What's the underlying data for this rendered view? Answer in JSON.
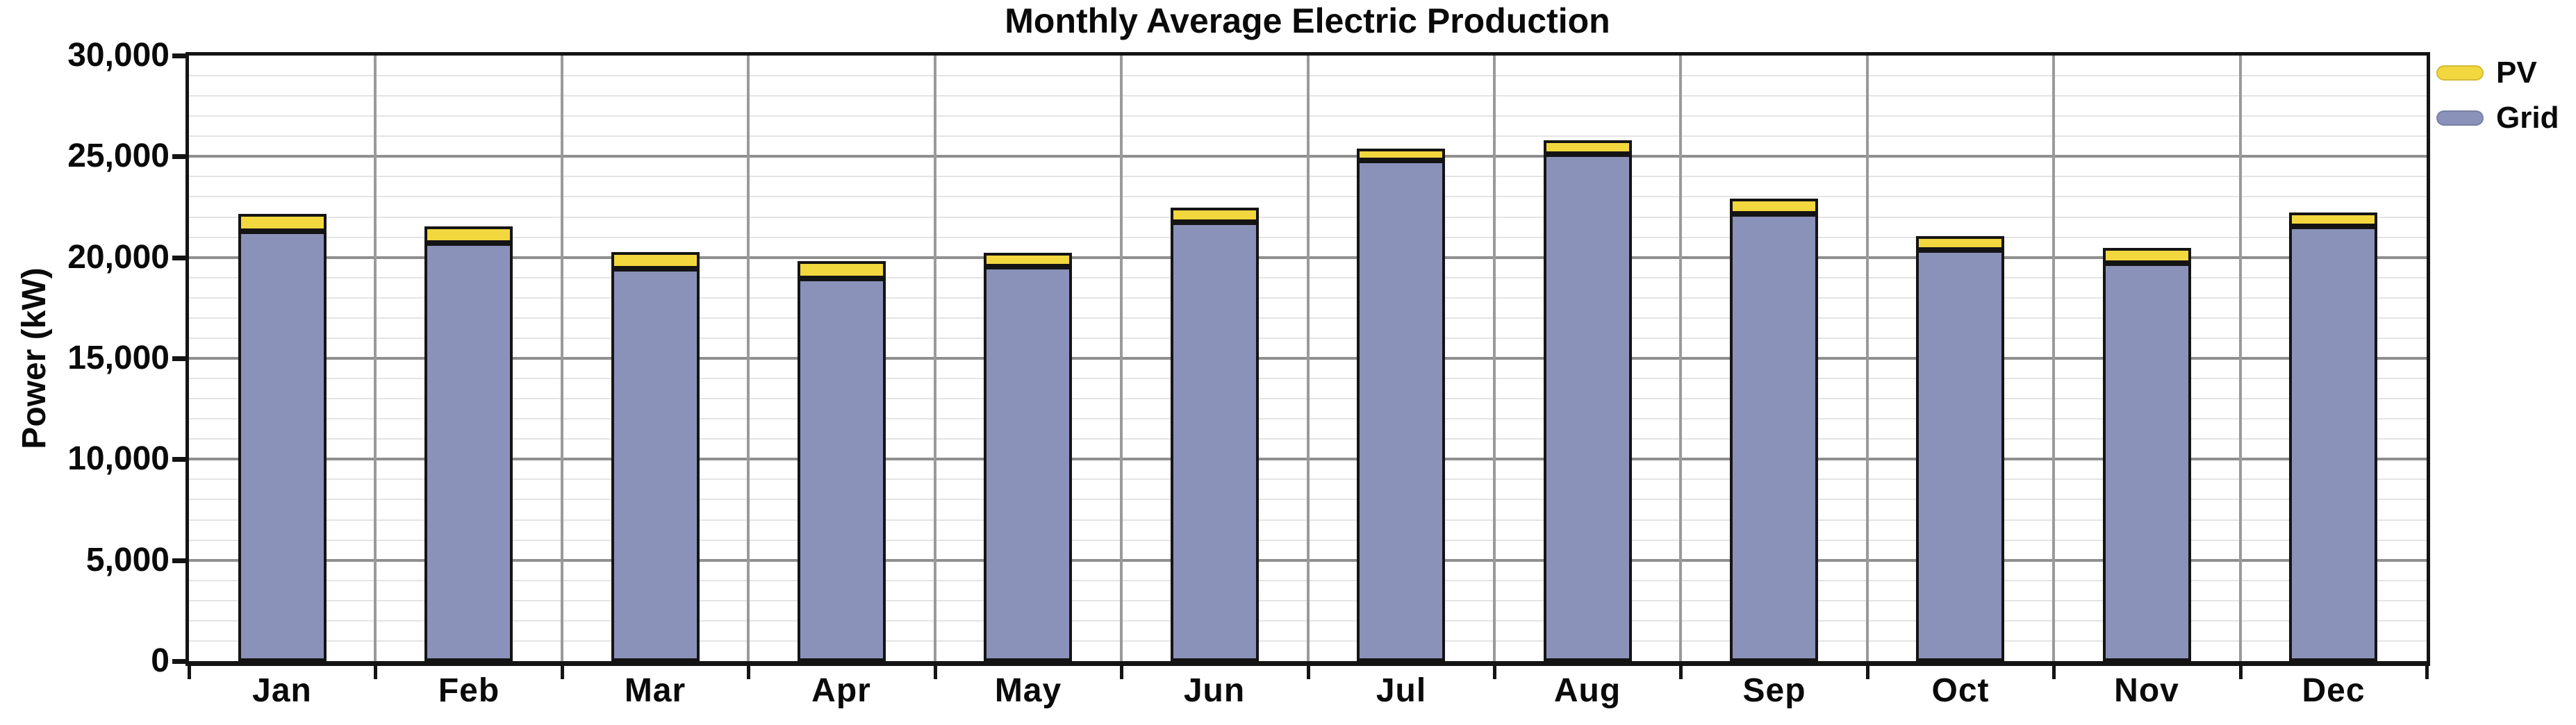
{
  "title": "Monthly Average Electric Production",
  "y_axis": {
    "label": "Power (kW)",
    "tick_values": [
      0,
      5000,
      10000,
      15000,
      20000,
      25000,
      30000
    ],
    "tick_labels": [
      "0",
      "5,000",
      "10,000",
      "15,000",
      "20,000",
      "25,000",
      "30,000"
    ]
  },
  "x_axis": {
    "categories": [
      "Jan",
      "Feb",
      "Mar",
      "Apr",
      "May",
      "Jun",
      "Jul",
      "Aug",
      "Sep",
      "Oct",
      "Nov",
      "Dec"
    ]
  },
  "legend": {
    "items": [
      {
        "label": "PV",
        "color": "#F2D73E"
      },
      {
        "label": "Grid",
        "color": "#8A92BA"
      }
    ]
  },
  "colors": {
    "pv": "#F2D73E",
    "grid_series": "#8A92BA",
    "bar_outline": "#141414",
    "major_gridline": "#8f8f8f",
    "minor_gridline": "#e4e4e4",
    "frame": "#141414"
  },
  "chart_data": {
    "type": "bar",
    "stacked": true,
    "title": "Monthly Average Electric Production",
    "xlabel": "",
    "ylabel": "Power (kW)",
    "categories": [
      "Jan",
      "Feb",
      "Mar",
      "Apr",
      "May",
      "Jun",
      "Jul",
      "Aug",
      "Sep",
      "Oct",
      "Nov",
      "Dec"
    ],
    "series": [
      {
        "name": "Grid",
        "color": "#8A92BA",
        "values": [
          21300,
          20700,
          19450,
          18950,
          19550,
          21750,
          24800,
          25100,
          22160,
          20350,
          19730,
          21550
        ]
      },
      {
        "name": "PV",
        "color": "#F2D73E",
        "values": [
          850,
          820,
          830,
          850,
          700,
          720,
          580,
          700,
          740,
          700,
          740,
          700
        ]
      }
    ],
    "totals": [
      22150,
      21520,
      20280,
      19800,
      20250,
      22470,
      25380,
      25800,
      22900,
      21050,
      20470,
      22250
    ],
    "ylim": [
      0,
      30000
    ],
    "y_major_step": 5000,
    "y_minor_step": 1000,
    "grid": true,
    "legend_position": "outside-top-right",
    "legend_order": [
      "PV",
      "Grid"
    ]
  }
}
